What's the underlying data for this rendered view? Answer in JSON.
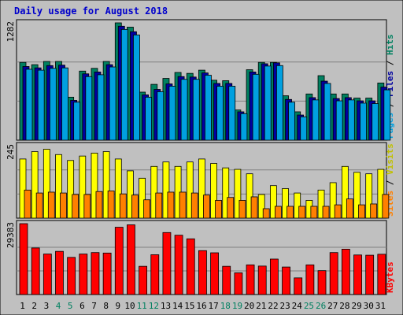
{
  "chart_data": {
    "title": "Daily usage for August 2018",
    "type": "bar",
    "categories": [
      "1",
      "2",
      "3",
      "4",
      "5",
      "6",
      "7",
      "8",
      "9",
      "10",
      "11",
      "12",
      "13",
      "14",
      "15",
      "16",
      "17",
      "18",
      "19",
      "20",
      "21",
      "22",
      "23",
      "24",
      "25",
      "26",
      "27",
      "28",
      "29",
      "30",
      "31"
    ],
    "weekend_days": [
      "4",
      "5",
      "11",
      "12",
      "18",
      "19",
      "25",
      "26"
    ],
    "panels": [
      {
        "ylabel_max": "1282",
        "ymax": 1282,
        "right_label": [
          "Pages",
          "Files",
          "Hits"
        ],
        "right_label_colors": [
          "#00a0e0",
          "#0000a0",
          "#008060"
        ],
        "series": [
          {
            "name": "Hits",
            "color": "#008060",
            "values": [
              850,
              825,
              860,
              860,
              470,
              755,
              785,
              860,
              1282,
              1235,
              525,
              610,
              675,
              740,
              730,
              765,
              655,
              650,
              330,
              770,
              850,
              850,
              485,
              310,
              505,
              705,
              505,
              505,
              460,
              460,
              625
            ]
          },
          {
            "name": "Files",
            "color": "#0000a0",
            "values": [
              805,
              790,
              815,
              820,
              435,
              725,
              745,
              825,
              1245,
              1185,
              495,
              555,
              615,
              695,
              690,
              735,
              620,
              620,
              310,
              745,
              835,
              845,
              445,
              275,
              465,
              645,
              455,
              465,
              430,
              430,
              580
            ]
          },
          {
            "name": "Pages",
            "color": "#00a0e0",
            "values": [
              775,
              765,
              785,
              790,
              415,
              695,
              715,
              800,
              1210,
              1150,
              470,
              530,
              590,
              665,
              665,
              710,
              590,
              590,
              290,
              720,
              810,
              815,
              415,
              255,
              440,
              620,
              430,
              440,
              405,
              400,
              550
            ]
          }
        ]
      },
      {
        "ylabel_max": "245",
        "ymax": 245,
        "right_label": [
          "Sites",
          "Visits"
        ],
        "right_label_colors": [
          "#ff8000",
          "#c0c000"
        ],
        "series": [
          {
            "name": "Visits",
            "color": "#ffff00",
            "values": [
              200,
              225,
              233,
              215,
              195,
              210,
              220,
              225,
              200,
              160,
              135,
              175,
              190,
              175,
              190,
              200,
              185,
              170,
              165,
              150,
              80,
              110,
              100,
              85,
              60,
              95,
              120,
              175,
              155,
              150,
              165
            ]
          },
          {
            "name": "Sites",
            "color": "#ff8000",
            "values": [
              95,
              85,
              88,
              85,
              80,
              80,
              90,
              92,
              82,
              78,
              62,
              85,
              88,
              88,
              85,
              78,
              60,
              70,
              60,
              72,
              32,
              40,
              40,
              40,
              40,
              40,
              45,
              65,
              45,
              48,
              80
            ]
          }
        ]
      },
      {
        "ylabel_max": "29383",
        "ymax": 29383,
        "right_label": [
          "KBytes"
        ],
        "right_label_colors": [
          "#ff0000"
        ],
        "series": [
          {
            "name": "KBytes",
            "color": "#ff0000",
            "values": [
              29383,
              19300,
              16800,
              17900,
              15400,
              16800,
              17400,
              17200,
              27900,
              28900,
              11700,
              16500,
              25700,
              24600,
              23100,
              18200,
              17300,
              11700,
              9000,
              12300,
              11800,
              14700,
              11400,
              6900,
              12300,
              9900,
              17400,
              18800,
              16400,
              16300,
              16700
            ]
          }
        ]
      }
    ]
  }
}
